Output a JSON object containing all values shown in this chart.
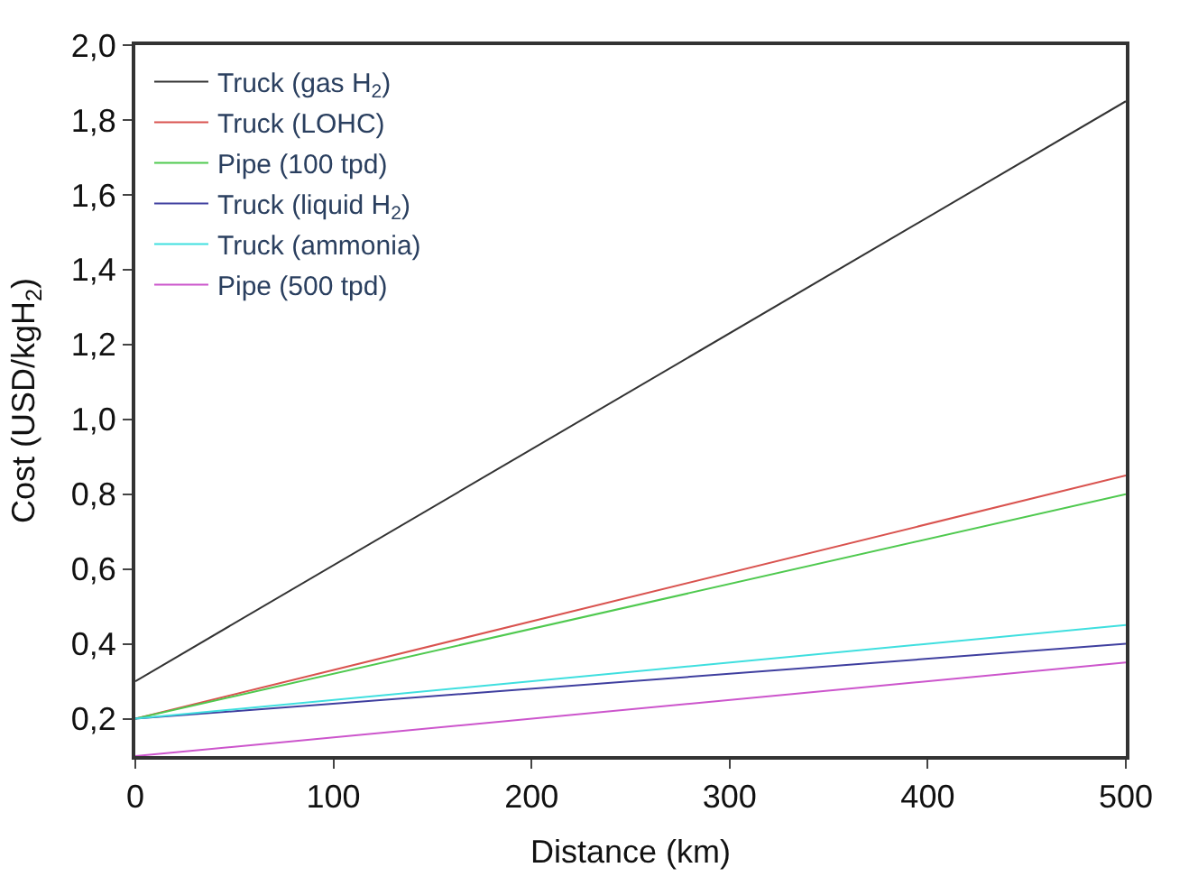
{
  "chart_data": {
    "type": "line",
    "xlabel": "Distance (km)",
    "ylabel": "Cost (USD/kgH$_{2}$)",
    "x": [
      0,
      500
    ],
    "series": [
      {
        "name": "Truck (gas H$_{2}$)",
        "color": "#333333",
        "values": [
          0.3,
          1.85
        ]
      },
      {
        "name": "Truck (LOHC)",
        "color": "#d9534f",
        "values": [
          0.2,
          0.85
        ]
      },
      {
        "name": "Pipe (100 tpd)",
        "color": "#4fc94f",
        "values": [
          0.2,
          0.8
        ]
      },
      {
        "name": "Truck (liquid H$_{2}$)",
        "color": "#3f3f9f",
        "values": [
          0.2,
          0.4
        ]
      },
      {
        "name": "Truck (ammonia)",
        "color": "#3fdfdf",
        "values": [
          0.2,
          0.45
        ]
      },
      {
        "name": "Pipe (500 tpd)",
        "color": "#cc55cc",
        "values": [
          0.1,
          0.35
        ]
      }
    ],
    "xlim": [
      0,
      500
    ],
    "xticks": [
      0,
      100,
      200,
      300,
      400,
      500
    ],
    "ylim": [
      0.1,
      2.0
    ],
    "yticks": [
      {
        "value": 0.2,
        "label": "0,2"
      },
      {
        "value": 0.4,
        "label": "0,4"
      },
      {
        "value": 0.6,
        "label": "0,6"
      },
      {
        "value": 0.8,
        "label": "0,8"
      },
      {
        "value": 1.0,
        "label": "1,0"
      },
      {
        "value": 1.2,
        "label": "1,2"
      },
      {
        "value": 1.4,
        "label": "1,4"
      },
      {
        "value": 1.6,
        "label": "1,6"
      },
      {
        "value": 1.8,
        "label": "1,8"
      },
      {
        "value": 2.0,
        "label": "2,0"
      }
    ],
    "legend": "top left",
    "marker": "none",
    "line_style": "solid"
  }
}
